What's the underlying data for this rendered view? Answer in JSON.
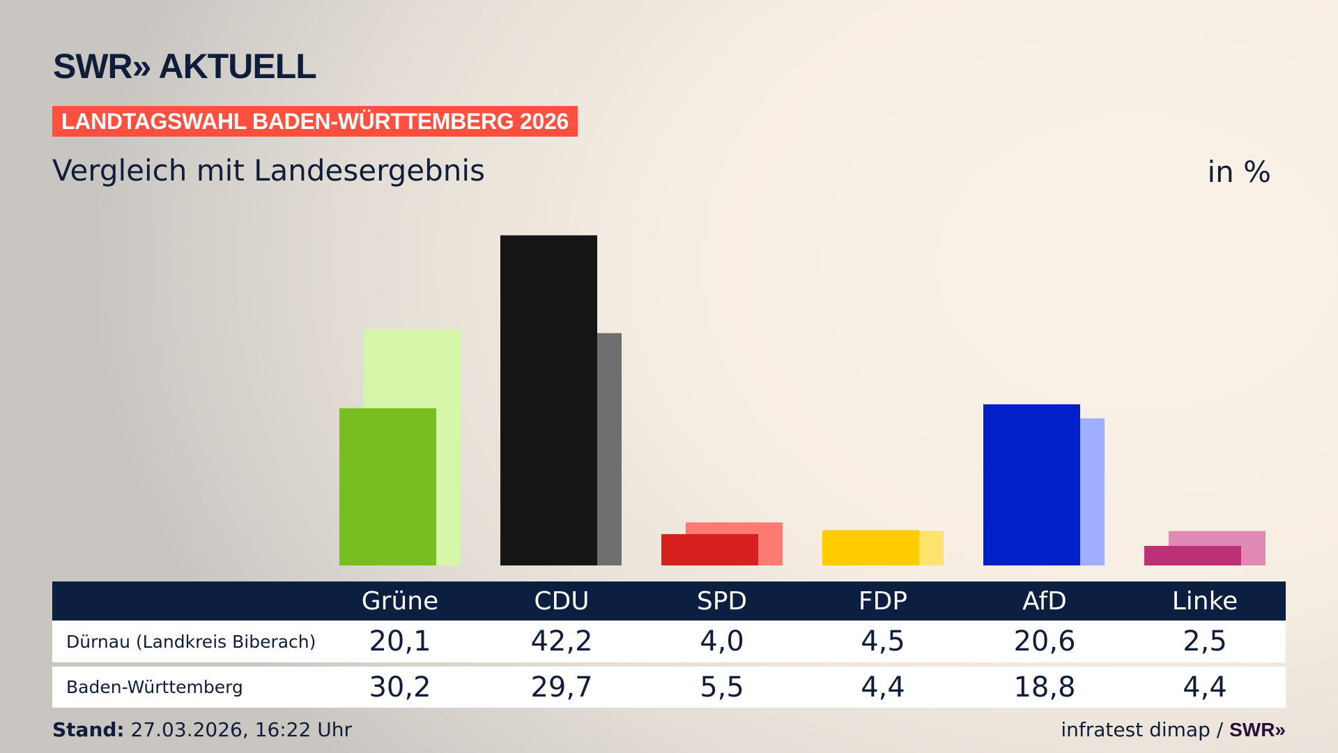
{
  "header": {
    "logo": "SWR» AKTUELL",
    "banner": "LANDTAGSWAHL BADEN-WÜRTTEMBERG 2026",
    "subtitle": "Vergleich mit Landesergebnis",
    "unit": "in %"
  },
  "chart_data": {
    "type": "bar",
    "categories": [
      "Grüne",
      "CDU",
      "SPD",
      "FDP",
      "AfD",
      "Linke"
    ],
    "series": [
      {
        "name": "Dürnau (Landkreis Biberach)",
        "values": [
          20.1,
          42.2,
          4.0,
          4.5,
          20.6,
          2.5
        ],
        "display": [
          "20,1",
          "42,2",
          "4,0",
          "4,5",
          "20,6",
          "2,5"
        ]
      },
      {
        "name": "Baden-Württemberg",
        "values": [
          30.2,
          29.7,
          5.5,
          4.4,
          18.8,
          4.4
        ],
        "display": [
          "30,2",
          "29,7",
          "5,5",
          "4,4",
          "18,8",
          "4,4"
        ]
      }
    ],
    "colors": {
      "primary": [
        "#78be1e",
        "#151515",
        "#d71f1d",
        "#ffcc00",
        "#0021c8",
        "#be3075"
      ],
      "secondary": [
        "#d5f5a8",
        "#706f6f",
        "#ff7a72",
        "#ffe36f",
        "#a0aeff",
        "#e08ab5"
      ]
    },
    "grid": false
  },
  "footer": {
    "stand_label": "Stand:",
    "stand_value": "27.03.2026, 16:22 Uhr",
    "source": "infratest dimap / ",
    "source_logo": "SWR»"
  }
}
